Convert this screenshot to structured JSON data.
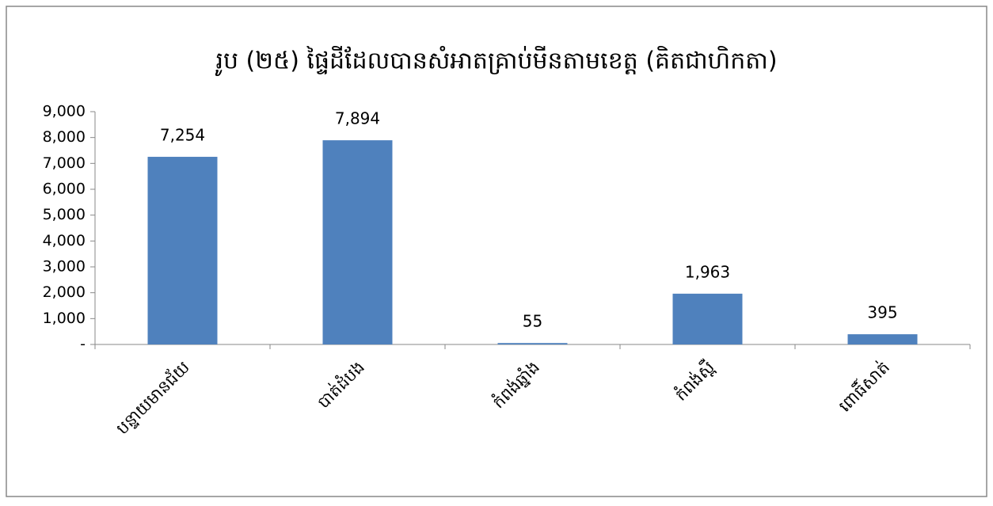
{
  "chart_data": {
    "type": "bar",
    "title": "រូប (២៥) ផ្ទៃដីដែលបានសំអាតគ្រាប់មីនតាមខេត្ត (គិតជាហិកតា)",
    "categories": [
      "បន្ទាយមានជ័យ",
      "បាត់ដំបង",
      "កំពង់ឆ្នាំង",
      "កំពង់ស្ពឺ",
      "ពោធិ៍សាត់"
    ],
    "values": [
      7254,
      7894,
      55,
      1963,
      395
    ],
    "value_labels": [
      "7,254",
      "7,894",
      "55",
      "1,963",
      "395"
    ],
    "color": "#4f81bd",
    "ylim": [
      0,
      9000
    ],
    "yticks": [
      {
        "value": 0,
        "label": "-"
      },
      {
        "value": 1000,
        "label": "1,000"
      },
      {
        "value": 2000,
        "label": "2,000"
      },
      {
        "value": 3000,
        "label": "3,000"
      },
      {
        "value": 4000,
        "label": "4,000"
      },
      {
        "value": 5000,
        "label": "5,000"
      },
      {
        "value": 6000,
        "label": "6,000"
      },
      {
        "value": 7000,
        "label": "7,000"
      },
      {
        "value": 8000,
        "label": "8,000"
      },
      {
        "value": 9000,
        "label": "9,000"
      }
    ],
    "grid": false
  }
}
